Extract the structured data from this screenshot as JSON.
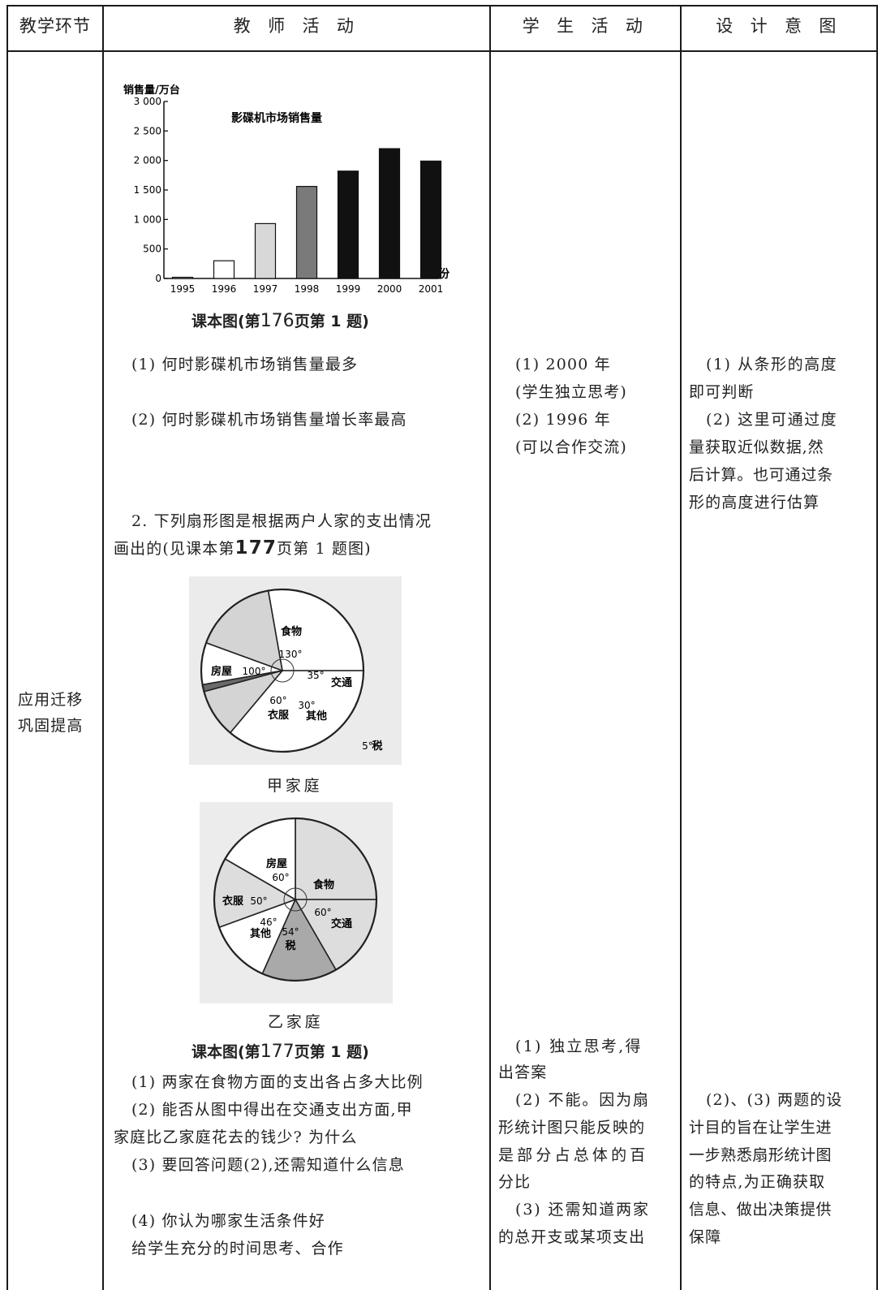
{
  "table": {
    "headers": [
      "教学环节",
      "教 师 活 动",
      "学 生 活 动",
      "设 计 意 图"
    ],
    "stage": [
      "应用迁移",
      "巩固提高"
    ]
  },
  "chart_data": [
    {
      "type": "bar",
      "title": "影碟机市场销售量",
      "ylabel": "销售量/万台",
      "xlabel": "年份",
      "categories": [
        "1995",
        "1996",
        "1997",
        "1998",
        "1999",
        "2000",
        "2001"
      ],
      "values": [
        20,
        300,
        930,
        1560,
        1820,
        2200,
        1990
      ],
      "ylim": [
        0,
        3000
      ],
      "yticks": [
        "0",
        "500",
        "1 000",
        "1 500",
        "2 000",
        "2 500",
        "3 000"
      ],
      "fills": [
        "#ffffff",
        "#ffffff",
        "#d8d8d8",
        "#7a7a7a",
        "#111111",
        "#111111",
        "#111111"
      ]
    },
    {
      "type": "pie",
      "name": "甲家庭",
      "slices": [
        {
          "label": "食物",
          "deg": "130°",
          "value": 130
        },
        {
          "label": "交通",
          "deg": "35°",
          "value": 35
        },
        {
          "label": "税",
          "deg": "5°",
          "value": 5
        },
        {
          "label": "其他",
          "deg": "30°",
          "value": 30
        },
        {
          "label": "衣服",
          "deg": "60°",
          "value": 60
        },
        {
          "label": "房屋",
          "deg": "100°",
          "value": 100
        }
      ]
    },
    {
      "type": "pie",
      "name": "乙家庭",
      "slices": [
        {
          "label": "食物",
          "deg": "",
          "value": 90
        },
        {
          "label": "交通",
          "deg": "60°",
          "value": 60
        },
        {
          "label": "税",
          "deg": "54°",
          "value": 54
        },
        {
          "label": "其他",
          "deg": "46°",
          "value": 46
        },
        {
          "label": "衣服",
          "deg": "50°",
          "value": 50
        },
        {
          "label": "房屋",
          "deg": "60°",
          "value": 60
        }
      ]
    }
  ],
  "teacher": {
    "caption1_a": "课本图(第",
    "caption1_page": "176",
    "caption1_b": "页第 1 题)",
    "q1": "(1) 何时影碟机市场销售量最多",
    "q2": "(2) 何时影碟机市场销售量增长率最高",
    "p2_line1": "2. 下列扇形图是根据两户人家的支出情况",
    "p2_line2_a": "画出的(见课本第",
    "p2_line2_page": "177",
    "p2_line2_b": "页第 1 题图)",
    "pie1_label": "甲家庭",
    "pie2_label": "乙家庭",
    "caption2_a": "课本图(第",
    "caption2_page": "177",
    "caption2_b": "页第 1 题)",
    "l1": "(1) 两家在食物方面的支出各占多大比例",
    "l2a": "(2) 能否从图中得出在交通支出方面,甲",
    "l2b": "家庭比乙家庭花去的钱少? 为什么",
    "l3": "(3) 要回答问题(2),还需知道什么信息",
    "l4": "(4) 你认为哪家生活条件好",
    "l5": "给学生充分的时间思考、合作"
  },
  "student": {
    "a1": "(1) 2000 年",
    "a2": "(学生独立思考)",
    "a3": "(2) 1996 年",
    "a4": "(可以合作交流)",
    "b1": "(1) 独立思考,得",
    "b2": "出答案",
    "b3": "(2) 不能。因为扇",
    "b4": "形统计图只能反映的",
    "b5": "是部分占总体的百",
    "b6": "分比",
    "b7": "(3) 还需知道两家",
    "b8": "的总开支或某项支出"
  },
  "design": {
    "a1": "(1) 从条形的高度",
    "a2": "即可判断",
    "a3": "(2) 这里可通过度",
    "a4": "量获取近似数据,然",
    "a5": "后计算。也可通过条",
    "a6": "形的高度进行估算",
    "b1": "(2)、(3) 两题的设",
    "b2": "计目的旨在让学生进",
    "b3": "一步熟悉扇形统计图",
    "b4": "的特点,为正确获取",
    "b5": "信息、做出决策提供",
    "b6": "保障"
  }
}
